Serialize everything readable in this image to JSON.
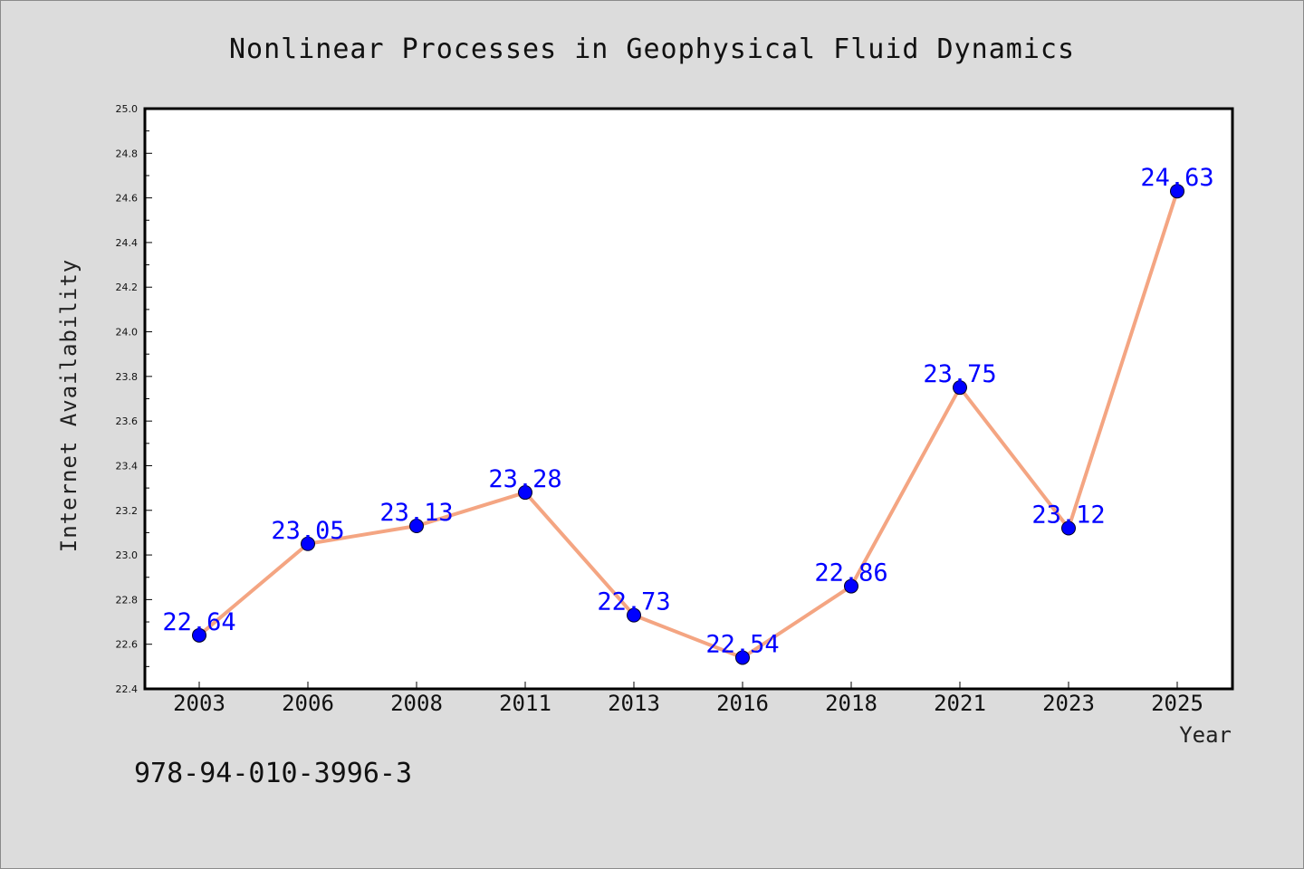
{
  "chart_data": {
    "type": "line",
    "title": "Nonlinear Processes in Geophysical Fluid Dynamics",
    "xlabel": "Year",
    "ylabel": "Internet Availability",
    "categories": [
      "2003",
      "2006",
      "2008",
      "2011",
      "2013",
      "2016",
      "2018",
      "2021",
      "2023",
      "2025"
    ],
    "series": [
      {
        "values": [
          22.64,
          23.05,
          23.13,
          23.28,
          22.73,
          22.54,
          22.86,
          23.75,
          23.12,
          24.63
        ],
        "line_color": "#f4a582",
        "marker_color": "#0000ff"
      }
    ],
    "data_labels": [
      "22.64",
      "23.05",
      "23.13",
      "23.28",
      "22.73",
      "22.54",
      "22.86",
      "23.75",
      "23.12",
      "24.63"
    ],
    "ylim": [
      22.4,
      25.0
    ],
    "yticks": [
      "22.4",
      "22.6",
      "22.8",
      "23.0",
      "23.2",
      "23.4",
      "23.6",
      "23.8",
      "24.0",
      "24.2",
      "24.4",
      "24.6",
      "24.8",
      "25.0"
    ],
    "grid": false,
    "legend": "none"
  },
  "footer": {
    "isbn": "978-94-010-3996-3"
  }
}
